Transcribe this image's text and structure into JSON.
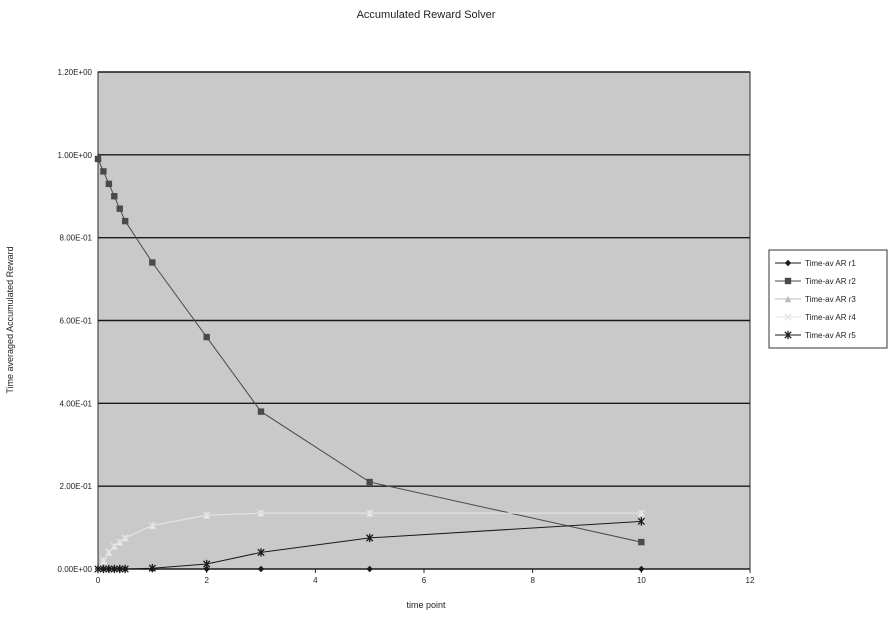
{
  "colors": {
    "plot_bg": "#c9c9c9",
    "grid": "#1a1a1a",
    "axis": "#2a2a2a",
    "series": [
      "#1a1a1a",
      "#4a4a4a",
      "#f0f0f0",
      "#e2e2e2",
      "#1a1a1a"
    ]
  },
  "chart_data": {
    "type": "line",
    "title": "Accumulated Reward Solver",
    "xlabel": "time point",
    "ylabel": "Time averaged Accumulated Reward",
    "xlim": [
      0,
      12
    ],
    "ylim": [
      0,
      1.2
    ],
    "x_ticks": [
      0,
      2,
      4,
      6,
      8,
      10,
      12
    ],
    "y_ticks": [
      0,
      0.2,
      0.4,
      0.6,
      0.8,
      1.0,
      1.2
    ],
    "y_tick_labels": [
      "0.00E+00",
      "2.00E-01",
      "4.00E-01",
      "6.00E-01",
      "8.00E-01",
      "1.00E+00",
      "1.20E+00"
    ],
    "grid": "horizontal",
    "legend_position": "right",
    "series": [
      {
        "name": "Time-av AR r1",
        "marker": "diamond",
        "x": [
          0,
          0.1,
          0.2,
          0.3,
          0.4,
          0.5,
          1,
          2,
          3,
          5,
          10
        ],
        "y": [
          0,
          0,
          0,
          0,
          0,
          0,
          0,
          0,
          0,
          0,
          0
        ]
      },
      {
        "name": "Time-av AR r2",
        "marker": "square",
        "x": [
          0,
          0.1,
          0.2,
          0.3,
          0.4,
          0.5,
          1,
          2,
          3,
          5,
          10
        ],
        "y": [
          0.99,
          0.96,
          0.93,
          0.9,
          0.87,
          0.84,
          0.74,
          0.56,
          0.38,
          0.21,
          0.065
        ]
      },
      {
        "name": "Time-av AR r3",
        "marker": "triangle",
        "x": [
          0,
          0.1,
          0.2,
          0.3,
          0.4,
          0.5,
          1,
          2,
          3,
          5,
          10
        ],
        "y": [
          0,
          0.02,
          0.04,
          0.055,
          0.065,
          0.075,
          0.105,
          0.13,
          0.135,
          0.135,
          0.135
        ]
      },
      {
        "name": "Time-av AR r4",
        "marker": "x",
        "x": [
          0,
          0.1,
          0.2,
          0.3,
          0.4,
          0.5,
          1,
          2,
          3,
          5,
          10
        ],
        "y": [
          0,
          0.02,
          0.04,
          0.055,
          0.065,
          0.075,
          0.105,
          0.13,
          0.135,
          0.135,
          0.135
        ]
      },
      {
        "name": "Time-av AR r5",
        "marker": "star",
        "x": [
          0,
          0.1,
          0.2,
          0.3,
          0.4,
          0.5,
          1,
          2,
          3,
          5,
          10
        ],
        "y": [
          0,
          0,
          0,
          0,
          0,
          0,
          0.002,
          0.012,
          0.04,
          0.075,
          0.115
        ]
      }
    ]
  }
}
